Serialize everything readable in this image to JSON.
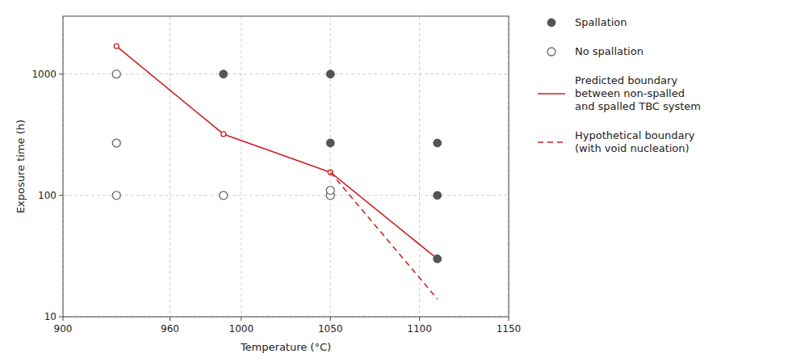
{
  "chart_data": {
    "type": "scatter",
    "log": "y",
    "grid": true,
    "legend": "right",
    "xlabel": "Temperature (°C)",
    "ylabel": "Exposure time (h)",
    "xlim": [
      900,
      1150
    ],
    "ylim": [
      10,
      3000
    ],
    "xticks": [
      900,
      960,
      1000,
      1050,
      1100,
      1150
    ],
    "yticks": [
      10,
      100,
      1000
    ],
    "series": [
      {
        "name": "Spallation",
        "type": "scatter",
        "marker": "circle",
        "color": "#555555",
        "x": [
          990,
          1050,
          1050,
          1110,
          1110,
          1110
        ],
        "values": [
          1000,
          1000,
          270,
          270,
          100,
          30
        ]
      },
      {
        "name": "No spallation",
        "type": "scatter",
        "marker": "open-circle",
        "color": "#666666",
        "x": [
          930,
          930,
          930,
          990,
          1050,
          1050
        ],
        "values": [
          1000,
          270,
          100,
          100,
          100,
          110
        ]
      },
      {
        "name": "Predicted boundary\nbetween non-spalled\nand spalled TBC system",
        "type": "line",
        "line_style": "solid",
        "marker": "open-circle",
        "color": "#cc2222",
        "x": [
          930,
          990,
          1050,
          1110
        ],
        "values": [
          1700,
          320,
          155,
          30
        ]
      },
      {
        "name": "Hypothetical boundary\n(with void nucleation)",
        "type": "line",
        "line_style": "dashed",
        "color": "#cc2222",
        "x": [
          1050,
          1110
        ],
        "values": [
          155,
          14
        ]
      }
    ]
  }
}
